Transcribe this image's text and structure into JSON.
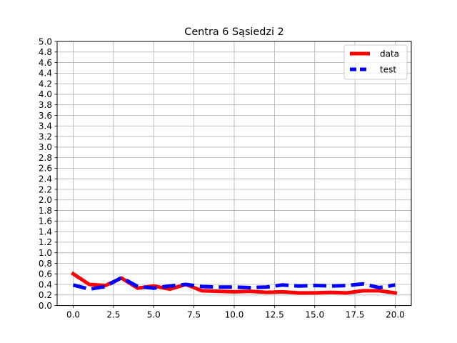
{
  "chart_data": {
    "type": "line",
    "title": "Centra 6 Sąsiedzi 2",
    "xlabel": "",
    "ylabel": "",
    "xlim": [
      -1.0,
      21.0
    ],
    "ylim": [
      0.0,
      5.0
    ],
    "x_ticks": [
      "0.0",
      "2.5",
      "5.0",
      "7.5",
      "10.0",
      "12.5",
      "15.0",
      "17.5",
      "20.0"
    ],
    "y_ticks": [
      "0.0",
      "0.2",
      "0.4",
      "0.6",
      "0.8",
      "1.0",
      "1.2",
      "1.4",
      "1.6",
      "1.8",
      "2.0",
      "2.2",
      "2.4",
      "2.6",
      "2.8",
      "3.0",
      "3.2",
      "3.4",
      "3.6",
      "3.8",
      "4.0",
      "4.2",
      "4.4",
      "4.6",
      "4.8",
      "5.0"
    ],
    "grid": true,
    "legend_position": "top-right",
    "x": [
      0,
      1,
      2,
      3,
      4,
      5,
      6,
      7,
      8,
      9,
      10,
      11,
      12,
      13,
      14,
      15,
      16,
      17,
      18,
      19,
      20
    ],
    "series": [
      {
        "name": "data",
        "color": "#ff0000",
        "style": "solid",
        "values": [
          0.6,
          0.4,
          0.38,
          0.52,
          0.33,
          0.37,
          0.31,
          0.4,
          0.28,
          0.27,
          0.26,
          0.27,
          0.25,
          0.26,
          0.24,
          0.24,
          0.25,
          0.24,
          0.28,
          0.28,
          0.24
        ]
      },
      {
        "name": "test",
        "color": "#0000ff",
        "style": "dashed",
        "values": [
          0.39,
          0.31,
          0.36,
          0.53,
          0.36,
          0.33,
          0.37,
          0.4,
          0.36,
          0.35,
          0.35,
          0.34,
          0.35,
          0.39,
          0.37,
          0.38,
          0.37,
          0.38,
          0.41,
          0.34,
          0.39
        ]
      }
    ]
  }
}
